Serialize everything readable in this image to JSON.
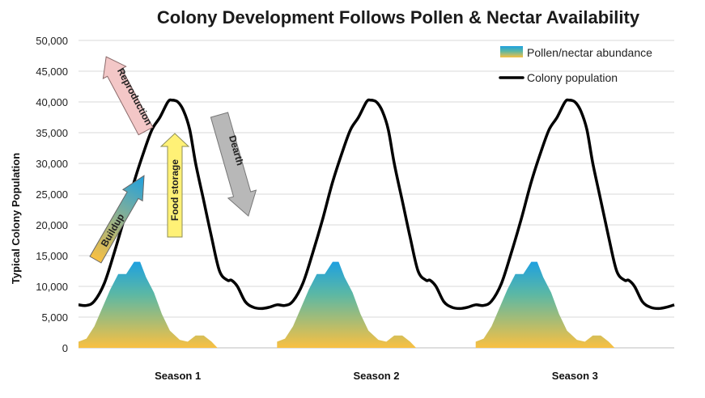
{
  "chart_data": {
    "type": "line",
    "title": "Colony Development Follows Pollen & Nectar Availability",
    "ylabel": "Typical Colony Population",
    "xlabel": "",
    "ylim": [
      0,
      50000
    ],
    "yticks": [
      0,
      5000,
      10000,
      15000,
      20000,
      25000,
      30000,
      35000,
      40000,
      45000,
      50000
    ],
    "ytick_labels": [
      "0",
      "5,000",
      "10,000",
      "15,000",
      "20,000",
      "25,000",
      "30,000",
      "35,000",
      "40,000",
      "45,000",
      "50,000"
    ],
    "xlim": [
      0,
      3
    ],
    "categories": [
      "Season 1",
      "Season 2",
      "Season 3"
    ],
    "category_positions": [
      0.5,
      1.5,
      2.5
    ],
    "grid": true,
    "legend": {
      "placement": "top-right",
      "entries": [
        "Pollen/nectar abundance",
        "Colony population"
      ]
    },
    "series": [
      {
        "name": "Pollen/nectar abundance",
        "kind": "area",
        "colors": [
          "#f9c042",
          "#5cb8a4",
          "#1ea0e0"
        ],
        "points": [
          [
            0.0,
            1000
          ],
          [
            0.04,
            1500
          ],
          [
            0.08,
            3500
          ],
          [
            0.12,
            6500
          ],
          [
            0.16,
            9500
          ],
          [
            0.2,
            12000
          ],
          [
            0.24,
            12000
          ],
          [
            0.28,
            14000
          ],
          [
            0.31,
            14000
          ],
          [
            0.34,
            11500
          ],
          [
            0.38,
            9000
          ],
          [
            0.42,
            5500
          ],
          [
            0.46,
            2800
          ],
          [
            0.51,
            1300
          ],
          [
            0.55,
            1000
          ],
          [
            0.59,
            2000
          ],
          [
            0.63,
            2000
          ],
          [
            0.67,
            1000
          ],
          [
            0.7,
            0
          ]
        ],
        "repeat_period": 1,
        "repeat_count": 3
      },
      {
        "name": "Colony population",
        "kind": "line",
        "color": "#000000",
        "points": [
          [
            0.0,
            7000
          ],
          [
            0.04,
            6900
          ],
          [
            0.08,
            7600
          ],
          [
            0.13,
            10500
          ],
          [
            0.18,
            15500
          ],
          [
            0.23,
            21000
          ],
          [
            0.28,
            27000
          ],
          [
            0.33,
            32000
          ],
          [
            0.37,
            35500
          ],
          [
            0.41,
            37500
          ],
          [
            0.45,
            40000
          ],
          [
            0.47,
            40300
          ],
          [
            0.5,
            40000
          ],
          [
            0.53,
            38500
          ],
          [
            0.56,
            35500
          ],
          [
            0.59,
            30000
          ],
          [
            0.63,
            24000
          ],
          [
            0.67,
            18000
          ],
          [
            0.71,
            12500
          ],
          [
            0.75,
            11000
          ],
          [
            0.77,
            11000
          ],
          [
            0.8,
            10000
          ],
          [
            0.84,
            7500
          ],
          [
            0.88,
            6600
          ],
          [
            0.92,
            6400
          ],
          [
            0.96,
            6600
          ],
          [
            1.0,
            7000
          ]
        ],
        "repeat_period": 1,
        "repeat_count": 3
      }
    ],
    "annotations": [
      {
        "label": "Buildup",
        "fill_from": "#f9c042",
        "fill_to": "#1ea0e0",
        "direction": "up-right"
      },
      {
        "label": "Reproduction",
        "fill": "#f3c7c7",
        "direction": "up-left"
      },
      {
        "label": "Food storage",
        "fill": "#fff176",
        "direction": "up"
      },
      {
        "label": "Dearth",
        "fill": "#b8b8b8",
        "direction": "down"
      }
    ]
  }
}
